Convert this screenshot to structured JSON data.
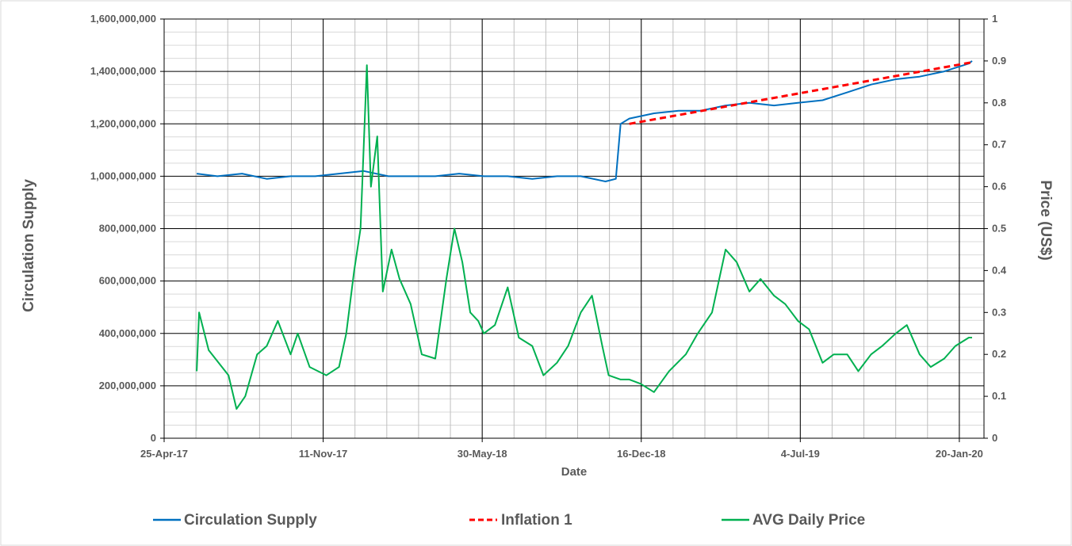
{
  "chart_data": {
    "type": "line",
    "title": "",
    "xlabel": "Date",
    "ylabel_left": "Circulation Supply",
    "ylabel_right": "Price (US$)",
    "x_range": [
      "25-Apr-17",
      "20-Feb-20"
    ],
    "ylim_left": [
      0,
      1600000000
    ],
    "ylim_right": [
      0,
      1
    ],
    "grid": true,
    "legend_position": "bottom",
    "x_tick_labels": [
      "25-Apr-17",
      "11-Nov-17",
      "30-May-18",
      "16-Dec-18",
      "4-Jul-19",
      "20-Jan-20"
    ],
    "y_left_tick_labels": [
      "0",
      "200,000,000",
      "400,000,000",
      "600,000,000",
      "800,000,000",
      "1,000,000,000",
      "1,200,000,000",
      "1,400,000,000",
      "1,600,000,000"
    ],
    "y_right_tick_labels": [
      "0",
      "0.1",
      "0.2",
      "0.3",
      "0.4",
      "0.5",
      "0.6",
      "0.7",
      "0.8",
      "0.9",
      "1"
    ],
    "series": [
      {
        "name": "Circulation Supply",
        "axis": "left",
        "color": "#0070C0",
        "style": "solid",
        "x": [
          "2017-06-05",
          "2017-07-01",
          "2017-08-01",
          "2017-09-01",
          "2017-10-01",
          "2017-11-01",
          "2017-12-01",
          "2018-01-01",
          "2018-02-01",
          "2018-03-01",
          "2018-04-01",
          "2018-05-01",
          "2018-06-01",
          "2018-07-01",
          "2018-08-01",
          "2018-09-01",
          "2018-10-01",
          "2018-11-01",
          "2018-11-14",
          "2018-11-20",
          "2018-12-01",
          "2019-01-01",
          "2019-02-01",
          "2019-03-01",
          "2019-04-01",
          "2019-05-01",
          "2019-06-01",
          "2019-07-01",
          "2019-08-01",
          "2019-09-01",
          "2019-10-01",
          "2019-11-01",
          "2019-12-01",
          "2020-01-01",
          "2020-02-01",
          "2020-02-05"
        ],
        "values": [
          1010000000,
          1000000000,
          1010000000,
          990000000,
          1000000000,
          1000000000,
          1010000000,
          1020000000,
          1000000000,
          1000000000,
          1000000000,
          1010000000,
          1000000000,
          1000000000,
          990000000,
          1000000000,
          1000000000,
          980000000,
          990000000,
          1200000000,
          1220000000,
          1240000000,
          1250000000,
          1250000000,
          1270000000,
          1280000000,
          1270000000,
          1280000000,
          1290000000,
          1320000000,
          1350000000,
          1370000000,
          1380000000,
          1400000000,
          1430000000,
          1440000000
        ]
      },
      {
        "name": "Inflation 1",
        "axis": "left",
        "color": "#FF0000",
        "style": "dashed",
        "x": [
          "2018-12-01",
          "2020-02-05"
        ],
        "values": [
          1200000000,
          1435000000
        ]
      },
      {
        "name": "AVG Daily Price",
        "axis": "right",
        "color": "#00B050",
        "style": "solid",
        "x": [
          "2017-06-05",
          "2017-06-08",
          "2017-06-20",
          "2017-07-15",
          "2017-07-25",
          "2017-08-05",
          "2017-08-20",
          "2017-09-01",
          "2017-09-15",
          "2017-10-01",
          "2017-10-10",
          "2017-10-25",
          "2017-11-15",
          "2017-12-01",
          "2017-12-10",
          "2017-12-20",
          "2017-12-28",
          "2018-01-05",
          "2018-01-10",
          "2018-01-18",
          "2018-01-25",
          "2018-02-05",
          "2018-02-15",
          "2018-03-01",
          "2018-03-15",
          "2018-04-01",
          "2018-04-15",
          "2018-04-25",
          "2018-05-05",
          "2018-05-15",
          "2018-05-25",
          "2018-06-01",
          "2018-06-15",
          "2018-07-01",
          "2018-07-15",
          "2018-08-01",
          "2018-08-15",
          "2018-09-01",
          "2018-09-15",
          "2018-10-01",
          "2018-10-15",
          "2018-10-28",
          "2018-11-05",
          "2018-11-20",
          "2018-12-01",
          "2018-12-15",
          "2019-01-01",
          "2019-01-20",
          "2019-02-10",
          "2019-02-25",
          "2019-03-15",
          "2019-04-01",
          "2019-04-15",
          "2019-05-01",
          "2019-05-15",
          "2019-06-01",
          "2019-06-15",
          "2019-07-01",
          "2019-07-15",
          "2019-08-01",
          "2019-08-15",
          "2019-09-01",
          "2019-09-15",
          "2019-10-01",
          "2019-10-15",
          "2019-11-01",
          "2019-11-15",
          "2019-12-01",
          "2019-12-15",
          "2020-01-01",
          "2020-01-15",
          "2020-02-01",
          "2020-02-05"
        ],
        "values": [
          0.16,
          0.3,
          0.21,
          0.15,
          0.07,
          0.1,
          0.2,
          0.22,
          0.28,
          0.2,
          0.25,
          0.17,
          0.15,
          0.17,
          0.25,
          0.4,
          0.5,
          0.89,
          0.6,
          0.72,
          0.35,
          0.45,
          0.38,
          0.32,
          0.2,
          0.19,
          0.38,
          0.5,
          0.42,
          0.3,
          0.28,
          0.25,
          0.27,
          0.36,
          0.24,
          0.22,
          0.15,
          0.18,
          0.22,
          0.3,
          0.34,
          0.22,
          0.15,
          0.14,
          0.14,
          0.13,
          0.11,
          0.16,
          0.2,
          0.25,
          0.3,
          0.45,
          0.42,
          0.35,
          0.38,
          0.34,
          0.32,
          0.28,
          0.26,
          0.18,
          0.2,
          0.2,
          0.16,
          0.2,
          0.22,
          0.25,
          0.27,
          0.2,
          0.17,
          0.19,
          0.22,
          0.24,
          0.24
        ]
      }
    ]
  }
}
